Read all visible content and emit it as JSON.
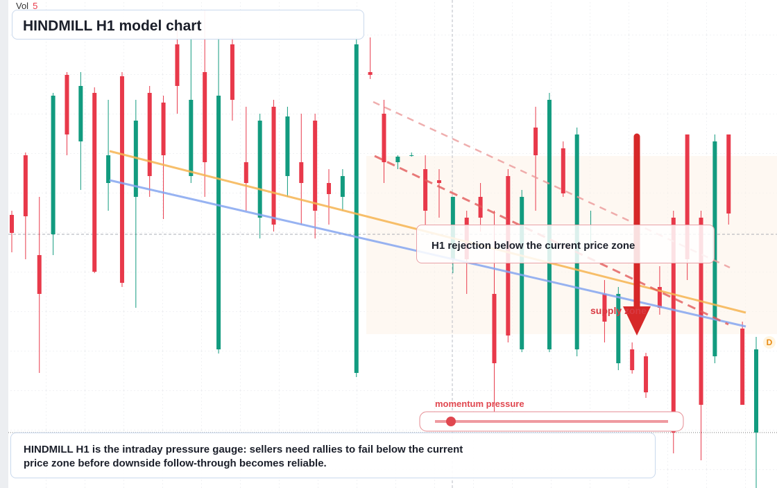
{
  "chart_data": {
    "type": "candlestick",
    "title": "HINDMILL H1 model chart",
    "volume": {
      "label": "Vol",
      "value": 5
    },
    "annotation": "H1 rejection below the current price zone",
    "zone_label": "supply zone",
    "gauge_label": "momentum pressure",
    "marker": "D",
    "note": "HINDMILL H1 is the intraday pressure gauge: sellers need rallies to fail below the current price zone before downside follow-through becomes reliable.",
    "up_color": "#129b7f",
    "down_color": "#e8394a",
    "ylim": [
      0,
      704
    ],
    "open": [
      394,
      480,
      336,
      366,
      596,
      500,
      570,
      440,
      594,
      420,
      570,
      556,
      640,
      450,
      600,
      200,
      640,
      470,
      390,
      550,
      450,
      470,
      530,
      440,
      420,
      166,
      600,
      540,
      470,
      480,
      460,
      444,
      330,
      390,
      420,
      280,
      450,
      200,
      520,
      200,
      490,
      200,
      380,
      280,
      180,
      200,
      190,
      290,
      390,
      510,
      390,
      190,
      510,
      230,
      80
    ],
    "high": [
      400,
      484,
      420,
      570,
      600,
      600,
      578,
      560,
      600,
      560,
      580,
      566,
      660,
      650,
      690,
      650,
      650,
      550,
      540,
      560,
      550,
      540,
      540,
      460,
      460,
      650,
      650,
      560,
      480,
      484,
      480,
      460,
      420,
      400,
      440,
      400,
      460,
      430,
      550,
      570,
      500,
      520,
      400,
      300,
      290,
      210,
      195,
      320,
      400,
      510,
      400,
      510,
      510,
      240,
      218
    ],
    "low": [
      340,
      330,
      166,
      336,
      480,
      430,
      310,
      400,
      290,
      260,
      420,
      388,
      540,
      440,
      420,
      194,
      530,
      400,
      360,
      370,
      420,
      380,
      360,
      380,
      400,
      160,
      590,
      440,
      460,
      478,
      380,
      390,
      310,
      280,
      370,
      110,
      210,
      196,
      400,
      196,
      420,
      190,
      350,
      210,
      170,
      165,
      130,
      250,
      50,
      300,
      40,
      180,
      380,
      120,
      0
    ],
    "close": [
      368,
      392,
      280,
      566,
      510,
      580,
      312,
      480,
      296,
      530,
      450,
      480,
      580,
      560,
      470,
      566,
      560,
      440,
      530,
      380,
      536,
      440,
      400,
      424,
      450,
      640,
      596,
      470,
      478,
      480,
      400,
      440,
      420,
      330,
      390,
      180,
      220,
      420,
      480,
      560,
      425,
      510,
      380,
      240,
      280,
      170,
      138,
      260,
      80,
      330,
      120,
      500,
      396,
      120,
      200
    ]
  }
}
